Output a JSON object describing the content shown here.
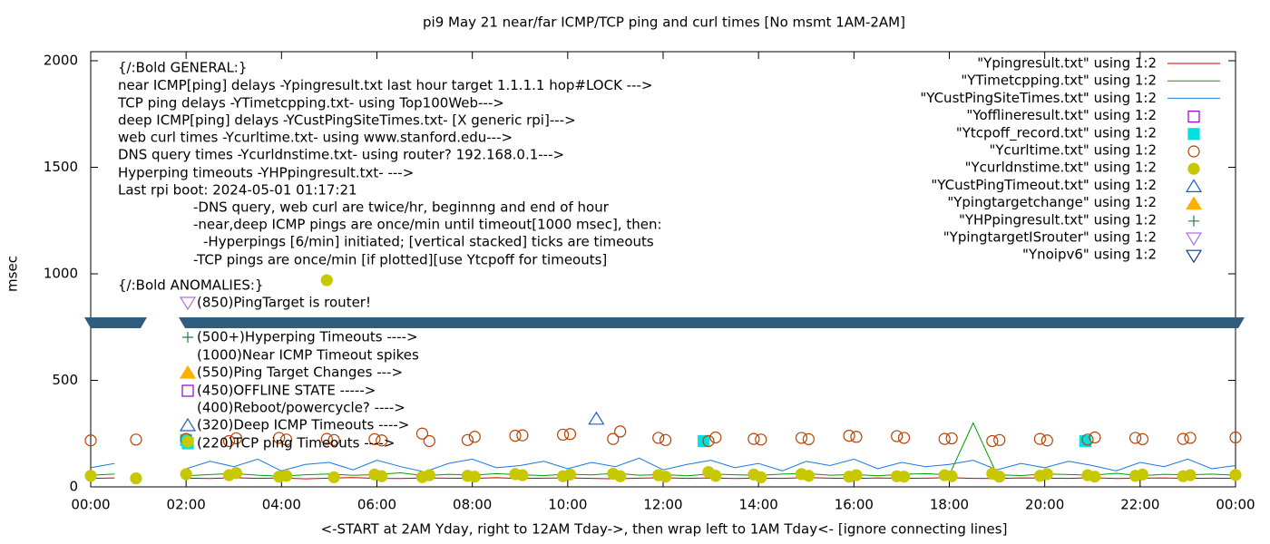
{
  "chart_data": {
    "type": "line",
    "title": "pi9 May 21  near/far ICMP/TCP ping and curl times [No msmt 1AM-2AM]",
    "x_label": "<-START at 2AM Yday, right to 12AM Tday->, then wrap left to 1AM Tday<- [ignore connecting lines]",
    "y_label": "msec",
    "xlim": [
      0,
      24
    ],
    "xticks": [
      {
        "value": 0,
        "label": "00:00"
      },
      {
        "value": 2,
        "label": "02:00"
      },
      {
        "value": 4,
        "label": "04:00"
      },
      {
        "value": 6,
        "label": "06:00"
      },
      {
        "value": 8,
        "label": "08:00"
      },
      {
        "value": 10,
        "label": "10:00"
      },
      {
        "value": 12,
        "label": "12:00"
      },
      {
        "value": 14,
        "label": "14:00"
      },
      {
        "value": 16,
        "label": "16:00"
      },
      {
        "value": 18,
        "label": "18:00"
      },
      {
        "value": 20,
        "label": "20:00"
      },
      {
        "value": 22,
        "label": "22:00"
      },
      {
        "value": 24,
        "label": "00:00"
      }
    ],
    "ylim": [
      0,
      2000
    ],
    "yticks": [
      0,
      500,
      1000,
      1500,
      2000
    ],
    "grid": false,
    "legend": "top-right",
    "annotations": [
      "{/:Bold GENERAL:}",
      "near ICMP[ping] delays -Ypingresult.txt last hour target 1.1.1.1 hop#LOCK --->",
      "TCP ping delays -YTimetcpping.txt- using Top100Web--->",
      "deep ICMP[ping] delays -YCustPingSiteTimes.txt- [X generic rpi]--->",
      "web curl times -Ycurltime.txt- using www.stanford.edu--->",
      "DNS query times -Ycurldnstime.txt- using router? 192.168.0.1--->",
      "Hyperping timeouts -YHPpingresult.txt- --->",
      "Last rpi boot: 2024-05-01 01:17:21",
      "-DNS query, web curl are twice/hr, beginnng and end of hour",
      "-near,deep ICMP pings are once/min until timeout[1000 msec], then:",
      "-Hyperpings [6/min] initiated; [vertical stacked] ticks are timeouts",
      "-TCP pings are once/min [if plotted][use Ytcpoff for timeouts]",
      "{/:Bold ANOMALIES:}",
      "(850)PingTarget is router!",
      "(500+)Hyperping Timeouts ---->",
      "(1000)Near ICMP Timeout spikes",
      "(550)Ping Target Changes --->",
      "(450)OFFLINE STATE ----->",
      "(400)Reboot/powercycle? ---->",
      "(320)Deep ICMP Timeouts ---->",
      "(220)TCP ping Timeouts ---->"
    ],
    "series": [
      {
        "name": "\"Ypingresult.txt\" using 1:2",
        "color": "#cc0000",
        "marker": "line",
        "x": [
          0,
          0.5,
          1,
          1.5,
          2,
          2.5,
          3,
          3.5,
          4,
          4.5,
          5,
          5.5,
          6,
          6.5,
          7,
          7.5,
          8,
          8.5,
          9,
          9.5,
          10,
          10.5,
          11,
          11.5,
          12,
          12.5,
          13,
          13.5,
          14,
          14.5,
          15,
          15.5,
          16,
          16.5,
          17,
          17.5,
          18,
          18.5,
          19,
          19.5,
          20,
          20.5,
          21,
          21.5,
          22,
          22.5,
          23,
          23.5,
          24
        ],
        "values": [
          40,
          42,
          null,
          null,
          41,
          39,
          43,
          40,
          42,
          38,
          41,
          44,
          40,
          39,
          42,
          41,
          40,
          43,
          39,
          41,
          42,
          40,
          38,
          41,
          43,
          40,
          42,
          39,
          41,
          40,
          44,
          41,
          39,
          42,
          40,
          41,
          43,
          40,
          39,
          42,
          41,
          40,
          43,
          39,
          41,
          42,
          40,
          41,
          40
        ]
      },
      {
        "name": "\"YTimetcpping.txt\" using 1:2",
        "color": "#00a000",
        "marker": "line",
        "x": [
          0,
          0.5,
          1,
          1.5,
          2,
          2.5,
          3,
          3.5,
          4,
          4.5,
          5,
          5.5,
          6,
          6.5,
          7,
          7.5,
          8,
          8.5,
          9,
          9.5,
          10,
          10.5,
          11,
          11.5,
          12,
          12.5,
          13,
          13.5,
          14,
          14.5,
          15,
          15.5,
          16,
          16.5,
          17,
          17.5,
          18,
          18.5,
          19,
          19.5,
          20,
          20.5,
          21,
          21.5,
          22,
          22.5,
          23,
          23.5,
          24
        ],
        "values": [
          55,
          60,
          null,
          null,
          52,
          58,
          63,
          55,
          50,
          57,
          61,
          54,
          58,
          66,
          52,
          59,
          55,
          62,
          57,
          53,
          60,
          56,
          64,
          55,
          58,
          52,
          61,
          57,
          54,
          60,
          63,
          55,
          58,
          52,
          59,
          62,
          56,
          300,
          57,
          53,
          61,
          58,
          55,
          64,
          52,
          59,
          56,
          60,
          55
        ]
      },
      {
        "name": "\"YCustPingSiteTimes.txt\" using 1:2",
        "color": "#1a78e0",
        "marker": "line",
        "x": [
          0,
          0.5,
          1,
          1.5,
          2,
          2.5,
          3,
          3.5,
          4,
          4.5,
          5,
          5.5,
          6,
          6.5,
          7,
          7.5,
          8,
          8.5,
          9,
          9.5,
          10,
          10.5,
          11,
          11.5,
          12,
          12.5,
          13,
          13.5,
          14,
          14.5,
          15,
          15.5,
          16,
          16.5,
          17,
          17.5,
          18,
          18.5,
          19,
          19.5,
          20,
          20.5,
          21,
          21.5,
          22,
          22.5,
          23,
          23.5,
          24
        ],
        "values": [
          90,
          110,
          null,
          null,
          85,
          120,
          95,
          130,
          75,
          105,
          115,
          80,
          125,
          95,
          70,
          110,
          130,
          90,
          100,
          120,
          85,
          115,
          95,
          135,
          80,
          105,
          125,
          90,
          110,
          75,
          120,
          100,
          130,
          85,
          115,
          95,
          105,
          125,
          80,
          110,
          90,
          120,
          100,
          75,
          115,
          95,
          130,
          85,
          100
        ]
      },
      {
        "name": "\"Yofflineresult.txt\" using 1:2",
        "color": "#9400d3",
        "marker": "square-open",
        "x": [],
        "values": []
      },
      {
        "name": "\"Ytcpoff_record.txt\" using 1:2",
        "color": "#00e0e0",
        "marker": "square",
        "x": [
          2,
          12.85,
          20.85
        ],
        "values": [
          220,
          215,
          215
        ]
      },
      {
        "name": "\"Ycurltime.txt\" using 1:2",
        "color": "#b84000",
        "marker": "circle-open",
        "x": [
          0,
          0.95,
          2,
          2.9,
          3.05,
          3.95,
          4.1,
          4.95,
          5.1,
          5.95,
          6.1,
          6.95,
          7.1,
          7.9,
          8.05,
          8.9,
          9.05,
          9.9,
          10.05,
          10.95,
          11.1,
          11.9,
          12.05,
          12.95,
          13.1,
          13.9,
          14.05,
          14.9,
          15.05,
          15.9,
          16.05,
          16.9,
          17.05,
          17.9,
          18.05,
          18.9,
          19.05,
          19.9,
          20.05,
          20.9,
          21.05,
          21.9,
          22.05,
          22.9,
          23.05,
          24
        ],
        "values": [
          218,
          222,
          225,
          215,
          228,
          230,
          222,
          225,
          220,
          224,
          218,
          250,
          215,
          220,
          235,
          240,
          242,
          245,
          248,
          225,
          260,
          230,
          220,
          215,
          232,
          225,
          222,
          230,
          224,
          240,
          235,
          238,
          230,
          225,
          228,
          215,
          220,
          225,
          218,
          222,
          232,
          230,
          224,
          225,
          230,
          232
        ]
      },
      {
        "name": "\"Ycurldnstime.txt\" using 1:2",
        "color": "#c8c800",
        "marker": "circle",
        "x": [
          0,
          0.95,
          2,
          2.9,
          3.05,
          3.95,
          4.1,
          4.95,
          5.1,
          5.95,
          6.1,
          6.95,
          7.1,
          7.9,
          8.05,
          8.9,
          9.05,
          9.9,
          10.05,
          10.95,
          11.1,
          11.9,
          12.05,
          12.95,
          13.1,
          13.9,
          14.05,
          14.9,
          15.05,
          15.9,
          16.05,
          16.9,
          17.05,
          17.9,
          18.05,
          18.9,
          19.05,
          19.9,
          20.05,
          20.9,
          21.05,
          21.9,
          22.05,
          22.9,
          23.05,
          24
        ],
        "values": [
          52,
          40,
          60,
          55,
          65,
          48,
          52,
          970,
          45,
          58,
          50,
          46,
          55,
          52,
          48,
          60,
          55,
          50,
          58,
          62,
          50,
          55,
          48,
          70,
          52,
          58,
          45,
          60,
          52,
          48,
          55,
          50,
          48,
          55,
          50,
          62,
          48,
          52,
          60,
          55,
          48,
          52,
          58,
          50,
          55,
          56
        ]
      },
      {
        "name": "\"YCustPingTimeout.txt\" using 1:2",
        "color": "#2060c0",
        "marker": "triangle-open",
        "x": [
          10.6
        ],
        "values": [
          320
        ]
      },
      {
        "name": "\"Ypingtargetchange\" using 1:2",
        "color": "#ffb000",
        "marker": "triangle",
        "x": [],
        "values": []
      },
      {
        "name": "\"YHPpingresult.txt\" using 1:2",
        "color": "#208040",
        "marker": "plus",
        "x": [],
        "values": []
      },
      {
        "name": "\"YpingtargetISrouter\" using 1:2",
        "color": "#b070e0",
        "marker": "triangle-down-open",
        "x": [],
        "values": []
      },
      {
        "name": "\"Ynoipv6\" using 1:2",
        "color": "#104080",
        "marker": "triangle-down-open",
        "x": [],
        "values": []
      }
    ]
  }
}
